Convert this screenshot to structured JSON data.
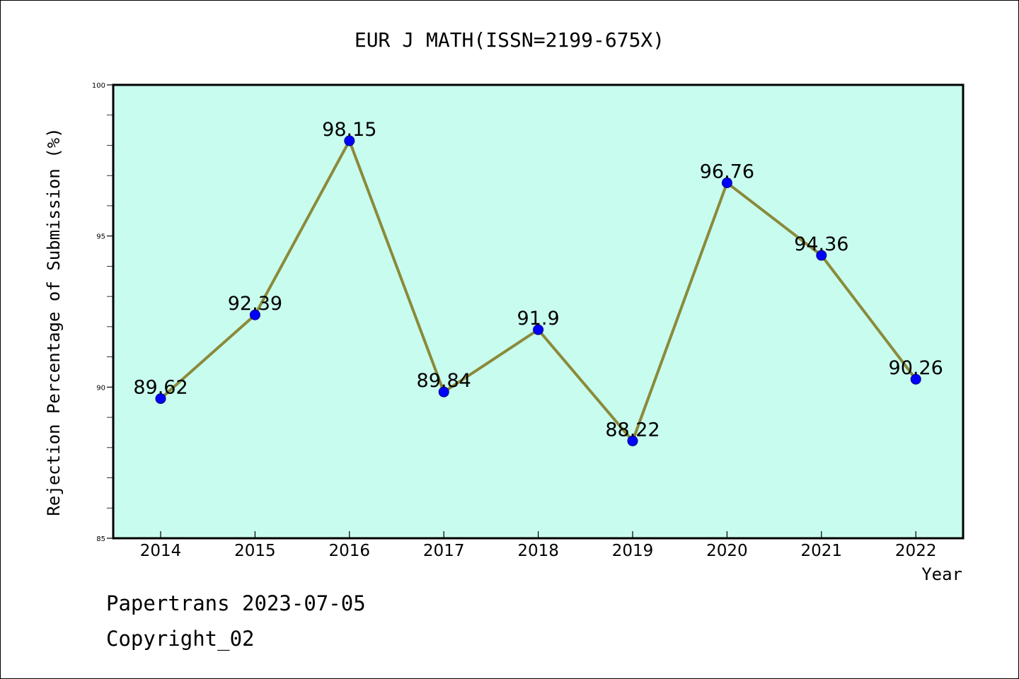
{
  "chart_data": {
    "type": "line",
    "title": "EUR J MATH(ISSN=2199-675X)",
    "xlabel": "Year",
    "ylabel": "Rejection Percentage of Submission (%)",
    "categories": [
      "2014",
      "2015",
      "2016",
      "2017",
      "2018",
      "2019",
      "2020",
      "2021",
      "2022"
    ],
    "values": [
      89.62,
      92.39,
      98.15,
      89.84,
      91.9,
      88.22,
      96.76,
      94.36,
      90.26
    ],
    "data_labels": [
      "89.62",
      "92.39",
      "98.15",
      "89.84",
      "91.9",
      "88.22",
      "96.76",
      "94.36",
      "90.26"
    ],
    "ylim": [
      85,
      100
    ],
    "yticks": [
      "85",
      "90",
      "95",
      "100"
    ],
    "grid": false,
    "colors": {
      "plot_background": "#c8fcee",
      "line": "#8b8a3a",
      "marker": "#0000ff"
    }
  },
  "footer": {
    "line1": "Papertrans 2023-07-05",
    "line2": "Copyright_02"
  }
}
